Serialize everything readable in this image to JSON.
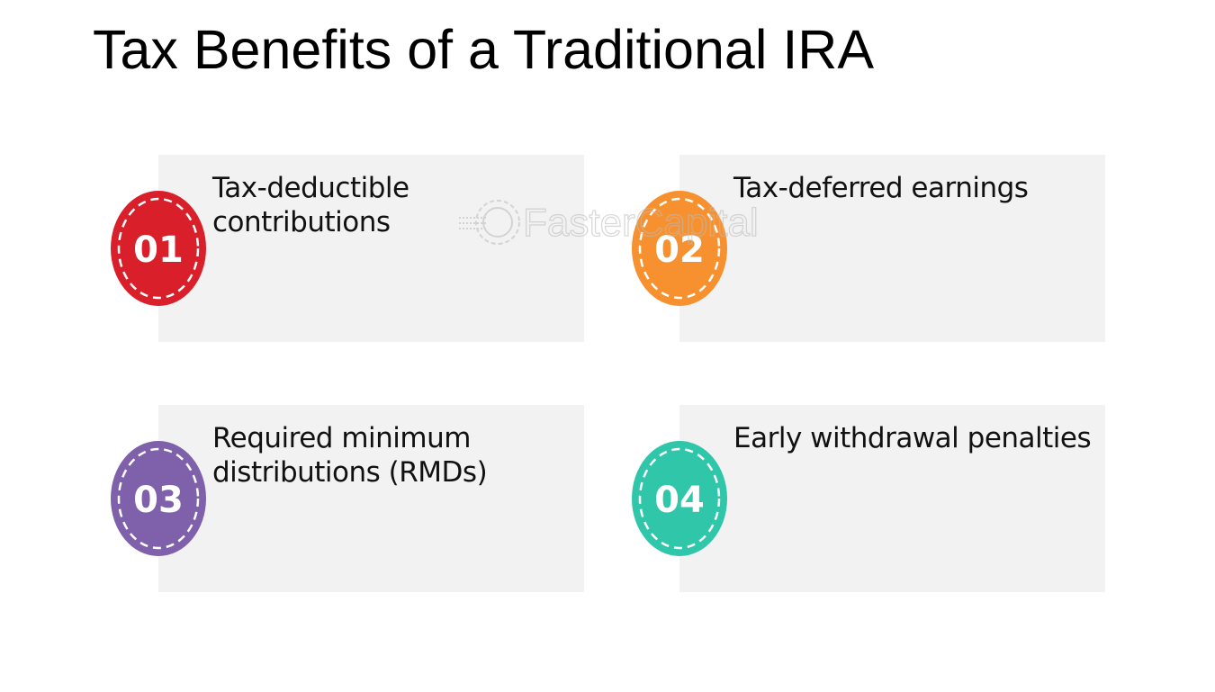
{
  "title": "Tax Benefits of a Traditional IRA",
  "watermark": "FasterCapital",
  "cards": [
    {
      "number": "01",
      "text": "Tax-deductible contributions",
      "color": "#d9202a"
    },
    {
      "number": "02",
      "text": "Tax-deferred earnings",
      "color": "#f7912f"
    },
    {
      "number": "03",
      "text": "Required minimum distributions (RMDs)",
      "color": "#7f61ab"
    },
    {
      "number": "04",
      "text": "Early withdrawal penalties",
      "color": "#2fc6a9"
    }
  ]
}
